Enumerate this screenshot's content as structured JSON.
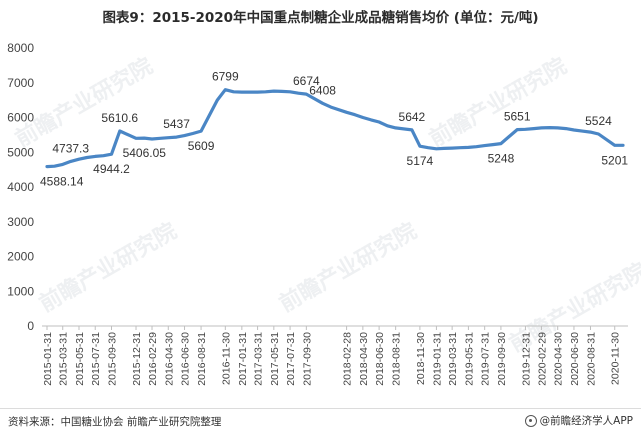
{
  "title": "图表9：2015-2020年中国重点制糖企业成品糖销售均价 (单位：元/吨)",
  "footer": {
    "source": "资料来源：中国糖业协会 前瞻产业研究院整理",
    "brand": "@前瞻经济学人APP",
    "brand_icon": "qianzhan-logo-icon"
  },
  "watermark": "前瞻产业研究院",
  "chart_data": {
    "type": "line",
    "title": "图表9：2015-2020年中国重点制糖企业成品糖销售均价 (单位：元/吨)",
    "xlabel": "",
    "ylabel": "",
    "ylim": [
      0,
      8000
    ],
    "yticks": [
      0,
      1000,
      2000,
      3000,
      4000,
      5000,
      6000,
      7000,
      8000
    ],
    "grid": false,
    "legend": "none",
    "line_color": "#4a86c5",
    "x_tick_labels": [
      "2015-01-31",
      "2015-03-31",
      "2015-05-31",
      "2015-07-31",
      "2015-09-30",
      "2015-12-31",
      "2016-02-29",
      "2016-04-30",
      "2016-06-30",
      "2016-08-31",
      "2016-11-30",
      "2017-01-31",
      "2017-03-31",
      "2017-05-31",
      "2017-07-31",
      "2017-09-30",
      "2018-02-28",
      "2018-04-30",
      "2018-06-30",
      "2018-08-31",
      "2018-11-30",
      "2019-01-31",
      "2019-03-31",
      "2019-05-31",
      "2019-07-31",
      "2019-09-30",
      "2019-12-31",
      "2020-02-29",
      "2020-04-30",
      "2020-06-30",
      "2020-08-31",
      "2020-11-30"
    ],
    "x": [
      "2015-01-31",
      "2015-02-28",
      "2015-03-31",
      "2015-04-30",
      "2015-05-31",
      "2015-06-30",
      "2015-07-31",
      "2015-08-31",
      "2015-09-30",
      "2015-10-31",
      "2015-12-31",
      "2016-01-31",
      "2016-02-29",
      "2016-03-31",
      "2016-04-30",
      "2016-05-31",
      "2016-06-30",
      "2016-07-31",
      "2016-08-31",
      "2016-10-31",
      "2016-11-30",
      "2016-12-31",
      "2017-01-31",
      "2017-02-28",
      "2017-03-31",
      "2017-04-30",
      "2017-05-31",
      "2017-06-30",
      "2017-07-31",
      "2017-08-31",
      "2017-09-30",
      "2017-11-30",
      "2017-12-31",
      "2018-02-28",
      "2018-03-31",
      "2018-04-30",
      "2018-05-31",
      "2018-06-30",
      "2018-07-31",
      "2018-08-31",
      "2018-10-31",
      "2018-11-30",
      "2018-12-31",
      "2019-01-31",
      "2019-02-28",
      "2019-03-31",
      "2019-04-30",
      "2019-05-31",
      "2019-06-30",
      "2019-07-31",
      "2019-08-31",
      "2019-09-30",
      "2019-11-30",
      "2019-12-31",
      "2020-01-31",
      "2020-02-29",
      "2020-03-31",
      "2020-04-30",
      "2020-05-31",
      "2020-06-30",
      "2020-07-31",
      "2020-08-31",
      "2020-09-30",
      "2020-11-30",
      "2020-12-31"
    ],
    "values": [
      4588.14,
      4600,
      4650,
      4737.3,
      4800,
      4850,
      4880,
      4900,
      4944.2,
      5610.6,
      5400,
      5406.05,
      5380,
      5400,
      5420,
      5437,
      5480,
      5540,
      5609,
      6500,
      6799,
      6740,
      6730,
      6730,
      6730,
      6740,
      6760,
      6750,
      6740,
      6700,
      6674,
      6408,
      6300,
      6150,
      6080,
      6000,
      5930,
      5870,
      5760,
      5700,
      5642,
      5174,
      5130,
      5100,
      5110,
      5120,
      5130,
      5140,
      5160,
      5190,
      5220,
      5248,
      5651,
      5660,
      5680,
      5700,
      5710,
      5700,
      5680,
      5640,
      5610,
      5580,
      5524,
      5201,
      5200
    ],
    "data_labels": [
      {
        "x": "2015-01-31",
        "label": "4588.14",
        "pos": "below"
      },
      {
        "x": "2015-04-30",
        "label": "4737.3",
        "pos": "above"
      },
      {
        "x": "2015-09-30",
        "label": "4944.2",
        "pos": "below"
      },
      {
        "x": "2015-10-31",
        "label": "5610.6",
        "pos": "above"
      },
      {
        "x": "2016-01-31",
        "label": "5406.05",
        "pos": "below"
      },
      {
        "x": "2016-05-31",
        "label": "5437",
        "pos": "above"
      },
      {
        "x": "2016-08-31",
        "label": "5609",
        "pos": "below"
      },
      {
        "x": "2016-11-30",
        "label": "6799",
        "pos": "above"
      },
      {
        "x": "2017-09-30",
        "label": "6674",
        "pos": "above"
      },
      {
        "x": "2017-11-30",
        "label": "6408",
        "pos": "above"
      },
      {
        "x": "2018-10-31",
        "label": "5642",
        "pos": "above"
      },
      {
        "x": "2018-11-30",
        "label": "5174",
        "pos": "below"
      },
      {
        "x": "2019-09-30",
        "label": "5248",
        "pos": "below"
      },
      {
        "x": "2019-11-30",
        "label": "5651",
        "pos": "above"
      },
      {
        "x": "2020-09-30",
        "label": "5524",
        "pos": "above"
      },
      {
        "x": "2020-11-30",
        "label": "5201",
        "pos": "below"
      }
    ]
  }
}
